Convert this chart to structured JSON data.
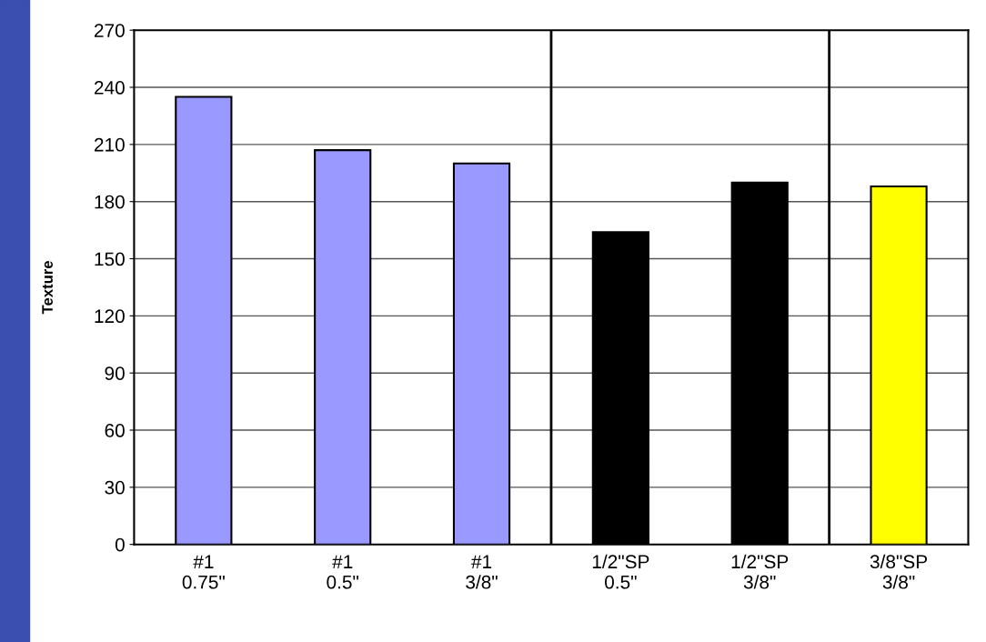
{
  "chart_data": {
    "type": "bar",
    "ylabel": "Texture",
    "categories": [
      "#1\n0.75\"",
      "#1\n0.5\"",
      "#1\n3/8\"",
      "1/2\"SP\n0.5\"",
      "1/2\"SP\n3/8\"",
      "3/8\"SP\n3/8\""
    ],
    "values": [
      235,
      207,
      200,
      164,
      190,
      188
    ],
    "colors": [
      "#9999ff",
      "#9999ff",
      "#9999ff",
      "#000000",
      "#000000",
      "#ffff00"
    ],
    "ylim": [
      0,
      270
    ],
    "yticks": [
      0,
      30,
      60,
      90,
      120,
      150,
      180,
      210,
      240,
      270
    ],
    "grid": "y"
  }
}
